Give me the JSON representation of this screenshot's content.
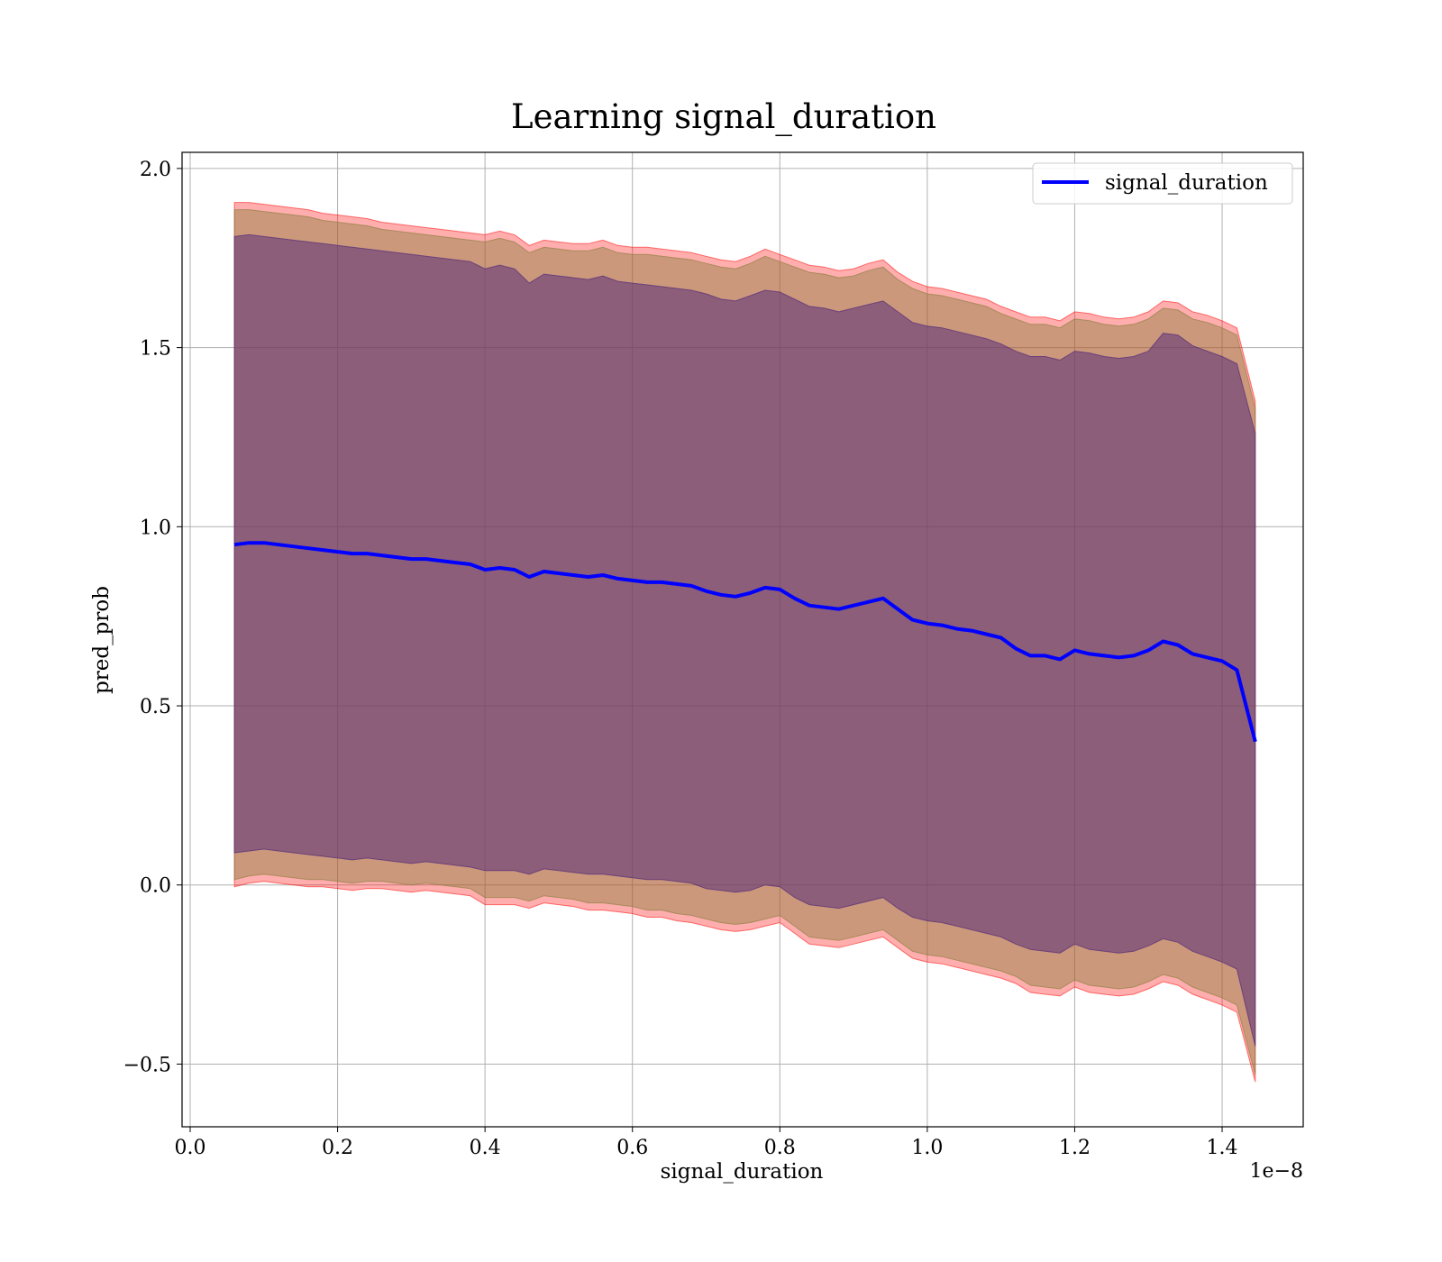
{
  "chart_data": {
    "type": "line",
    "title": "Learning signal_duration",
    "xlabel": "signal_duration",
    "ylabel": "pred_prob",
    "x_offset_text": "1e−8",
    "x_tick_labels": [
      "0.0",
      "0.2",
      "0.4",
      "0.6",
      "0.8",
      "1.0",
      "1.2",
      "1.4"
    ],
    "y_tick_labels": [
      "−0.5",
      "0.0",
      "0.5",
      "1.0",
      "1.5",
      "2.0"
    ],
    "xlim": [
      -0.011,
      1.51
    ],
    "ylim": [
      -0.675,
      2.045
    ],
    "x_scale_note": "×1e−8",
    "grid": true,
    "legend": {
      "position": "top-right"
    },
    "series": [
      {
        "name": "signal_duration",
        "color": "#0000ff",
        "x": [
          0.06,
          0.08,
          0.1,
          0.12,
          0.14,
          0.16,
          0.18,
          0.2,
          0.22,
          0.24,
          0.26,
          0.28,
          0.3,
          0.32,
          0.34,
          0.36,
          0.38,
          0.4,
          0.42,
          0.44,
          0.46,
          0.48,
          0.5,
          0.52,
          0.54,
          0.56,
          0.58,
          0.6,
          0.62,
          0.64,
          0.66,
          0.68,
          0.7,
          0.72,
          0.74,
          0.76,
          0.78,
          0.8,
          0.82,
          0.84,
          0.86,
          0.88,
          0.9,
          0.92,
          0.94,
          0.96,
          0.98,
          1.0,
          1.02,
          1.04,
          1.06,
          1.08,
          1.1,
          1.12,
          1.14,
          1.16,
          1.18,
          1.2,
          1.22,
          1.24,
          1.26,
          1.28,
          1.3,
          1.32,
          1.34,
          1.36,
          1.38,
          1.4,
          1.42,
          1.445
        ],
        "y": [
          0.95,
          0.955,
          0.955,
          0.95,
          0.945,
          0.94,
          0.935,
          0.93,
          0.925,
          0.925,
          0.92,
          0.915,
          0.91,
          0.91,
          0.905,
          0.9,
          0.895,
          0.88,
          0.885,
          0.88,
          0.86,
          0.875,
          0.87,
          0.865,
          0.86,
          0.865,
          0.855,
          0.85,
          0.845,
          0.845,
          0.84,
          0.835,
          0.82,
          0.81,
          0.805,
          0.815,
          0.83,
          0.825,
          0.8,
          0.78,
          0.775,
          0.77,
          0.78,
          0.79,
          0.8,
          0.77,
          0.74,
          0.73,
          0.725,
          0.715,
          0.71,
          0.7,
          0.69,
          0.66,
          0.64,
          0.64,
          0.63,
          0.655,
          0.645,
          0.64,
          0.635,
          0.64,
          0.655,
          0.68,
          0.67,
          0.645,
          0.635,
          0.625,
          0.6,
          0.4
        ]
      }
    ],
    "bands": [
      {
        "color": "#ff0000",
        "opacity": 0.32,
        "upper": [
          1.905,
          1.905,
          1.9,
          1.895,
          1.89,
          1.885,
          1.875,
          1.87,
          1.865,
          1.86,
          1.85,
          1.845,
          1.84,
          1.835,
          1.83,
          1.825,
          1.82,
          1.815,
          1.825,
          1.815,
          1.785,
          1.8,
          1.795,
          1.79,
          1.79,
          1.8,
          1.785,
          1.78,
          1.78,
          1.775,
          1.77,
          1.765,
          1.755,
          1.745,
          1.74,
          1.755,
          1.775,
          1.76,
          1.745,
          1.73,
          1.725,
          1.715,
          1.72,
          1.735,
          1.745,
          1.71,
          1.685,
          1.67,
          1.665,
          1.655,
          1.645,
          1.635,
          1.615,
          1.6,
          1.585,
          1.585,
          1.575,
          1.6,
          1.595,
          1.585,
          1.58,
          1.585,
          1.6,
          1.63,
          1.625,
          1.6,
          1.59,
          1.575,
          1.555,
          1.35
        ],
        "lower": [
          -0.005,
          0.005,
          0.01,
          0.005,
          0.0,
          -0.005,
          -0.005,
          -0.01,
          -0.015,
          -0.01,
          -0.01,
          -0.015,
          -0.02,
          -0.015,
          -0.02,
          -0.025,
          -0.03,
          -0.055,
          -0.055,
          -0.055,
          -0.065,
          -0.05,
          -0.055,
          -0.06,
          -0.07,
          -0.07,
          -0.075,
          -0.08,
          -0.09,
          -0.09,
          -0.1,
          -0.105,
          -0.115,
          -0.125,
          -0.13,
          -0.125,
          -0.115,
          -0.105,
          -0.135,
          -0.165,
          -0.17,
          -0.175,
          -0.165,
          -0.155,
          -0.145,
          -0.175,
          -0.205,
          -0.215,
          -0.22,
          -0.23,
          -0.24,
          -0.25,
          -0.26,
          -0.275,
          -0.3,
          -0.305,
          -0.31,
          -0.285,
          -0.3,
          -0.305,
          -0.31,
          -0.305,
          -0.29,
          -0.27,
          -0.28,
          -0.305,
          -0.32,
          -0.335,
          -0.355,
          -0.55
        ]
      },
      {
        "color": "#8b7f3f",
        "opacity": 0.45,
        "upper": [
          1.885,
          1.885,
          1.88,
          1.875,
          1.87,
          1.865,
          1.855,
          1.85,
          1.845,
          1.84,
          1.83,
          1.825,
          1.82,
          1.815,
          1.81,
          1.805,
          1.8,
          1.795,
          1.805,
          1.795,
          1.765,
          1.78,
          1.775,
          1.77,
          1.77,
          1.78,
          1.765,
          1.76,
          1.76,
          1.755,
          1.75,
          1.745,
          1.735,
          1.725,
          1.72,
          1.735,
          1.755,
          1.74,
          1.725,
          1.71,
          1.705,
          1.695,
          1.7,
          1.715,
          1.725,
          1.69,
          1.665,
          1.65,
          1.645,
          1.635,
          1.625,
          1.615,
          1.595,
          1.58,
          1.565,
          1.565,
          1.555,
          1.58,
          1.575,
          1.565,
          1.56,
          1.565,
          1.58,
          1.61,
          1.605,
          1.58,
          1.57,
          1.555,
          1.535,
          1.33
        ],
        "lower": [
          0.015,
          0.025,
          0.03,
          0.025,
          0.02,
          0.015,
          0.015,
          0.01,
          0.005,
          0.01,
          0.01,
          0.005,
          0.0,
          0.005,
          0.0,
          -0.005,
          -0.01,
          -0.035,
          -0.035,
          -0.035,
          -0.045,
          -0.03,
          -0.035,
          -0.04,
          -0.05,
          -0.05,
          -0.055,
          -0.06,
          -0.07,
          -0.07,
          -0.08,
          -0.085,
          -0.095,
          -0.105,
          -0.11,
          -0.105,
          -0.095,
          -0.085,
          -0.115,
          -0.145,
          -0.15,
          -0.155,
          -0.145,
          -0.135,
          -0.125,
          -0.155,
          -0.185,
          -0.195,
          -0.2,
          -0.21,
          -0.22,
          -0.23,
          -0.24,
          -0.255,
          -0.28,
          -0.285,
          -0.29,
          -0.265,
          -0.28,
          -0.285,
          -0.29,
          -0.285,
          -0.27,
          -0.25,
          -0.26,
          -0.285,
          -0.3,
          -0.315,
          -0.335,
          -0.53
        ]
      },
      {
        "color": "#5a2f7a",
        "opacity": 0.55,
        "upper": [
          1.81,
          1.815,
          1.81,
          1.805,
          1.8,
          1.795,
          1.79,
          1.785,
          1.78,
          1.775,
          1.77,
          1.765,
          1.76,
          1.755,
          1.75,
          1.745,
          1.74,
          1.72,
          1.73,
          1.72,
          1.68,
          1.705,
          1.7,
          1.695,
          1.69,
          1.7,
          1.685,
          1.68,
          1.675,
          1.67,
          1.665,
          1.66,
          1.65,
          1.635,
          1.63,
          1.645,
          1.66,
          1.655,
          1.635,
          1.615,
          1.61,
          1.6,
          1.61,
          1.62,
          1.63,
          1.6,
          1.57,
          1.56,
          1.555,
          1.545,
          1.535,
          1.525,
          1.51,
          1.49,
          1.475,
          1.475,
          1.465,
          1.49,
          1.485,
          1.475,
          1.47,
          1.475,
          1.49,
          1.54,
          1.535,
          1.505,
          1.49,
          1.475,
          1.455,
          1.26
        ],
        "lower": [
          0.09,
          0.095,
          0.1,
          0.095,
          0.09,
          0.085,
          0.08,
          0.075,
          0.07,
          0.075,
          0.07,
          0.065,
          0.06,
          0.065,
          0.06,
          0.055,
          0.05,
          0.04,
          0.04,
          0.04,
          0.03,
          0.045,
          0.04,
          0.035,
          0.03,
          0.03,
          0.025,
          0.02,
          0.015,
          0.015,
          0.01,
          0.005,
          -0.01,
          -0.015,
          -0.02,
          -0.015,
          0.0,
          -0.005,
          -0.035,
          -0.055,
          -0.06,
          -0.065,
          -0.055,
          -0.045,
          -0.035,
          -0.065,
          -0.09,
          -0.1,
          -0.105,
          -0.115,
          -0.125,
          -0.135,
          -0.145,
          -0.165,
          -0.18,
          -0.185,
          -0.19,
          -0.165,
          -0.18,
          -0.185,
          -0.19,
          -0.185,
          -0.17,
          -0.15,
          -0.16,
          -0.185,
          -0.2,
          -0.215,
          -0.235,
          -0.45
        ]
      }
    ]
  }
}
